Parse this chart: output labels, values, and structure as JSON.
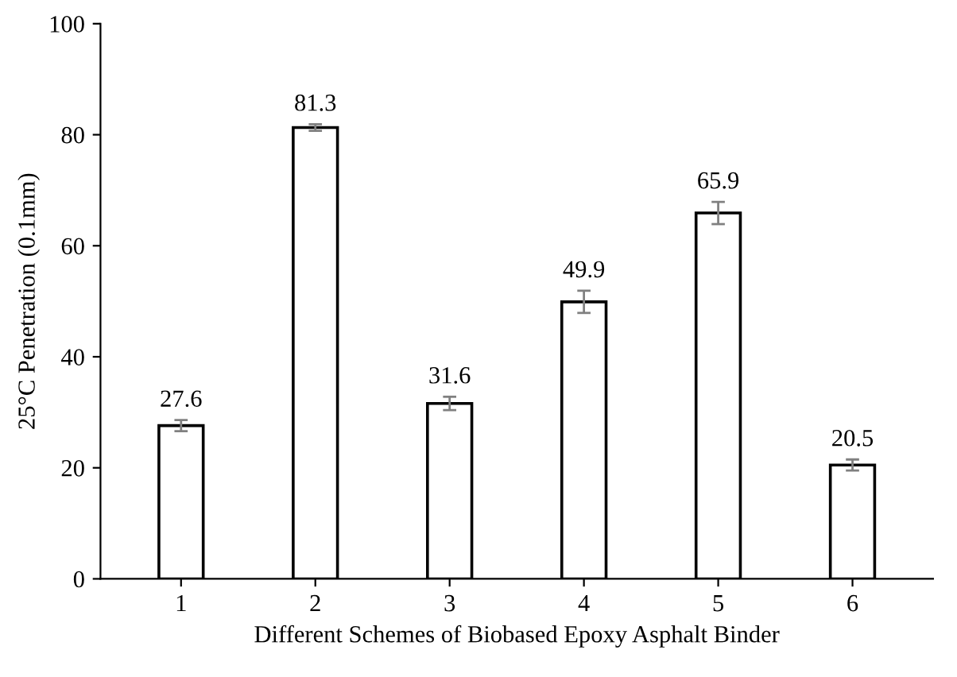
{
  "chart_data": {
    "type": "bar",
    "xlabel": "Different Schemes of Biobased Epoxy Asphalt Binder",
    "ylabel": "25°C Penetration (0.1mm)",
    "categories": [
      "1",
      "2",
      "3",
      "4",
      "5",
      "6"
    ],
    "values": [
      27.6,
      81.3,
      31.6,
      49.9,
      65.9,
      20.5
    ],
    "errors": [
      1.0,
      0.6,
      1.2,
      2.0,
      2.0,
      1.0
    ],
    "color": "#ffffff",
    "ylim": [
      0,
      100
    ],
    "yticks": [
      0,
      20,
      40,
      60,
      80,
      100
    ],
    "data_labels": true,
    "grid": false
  }
}
